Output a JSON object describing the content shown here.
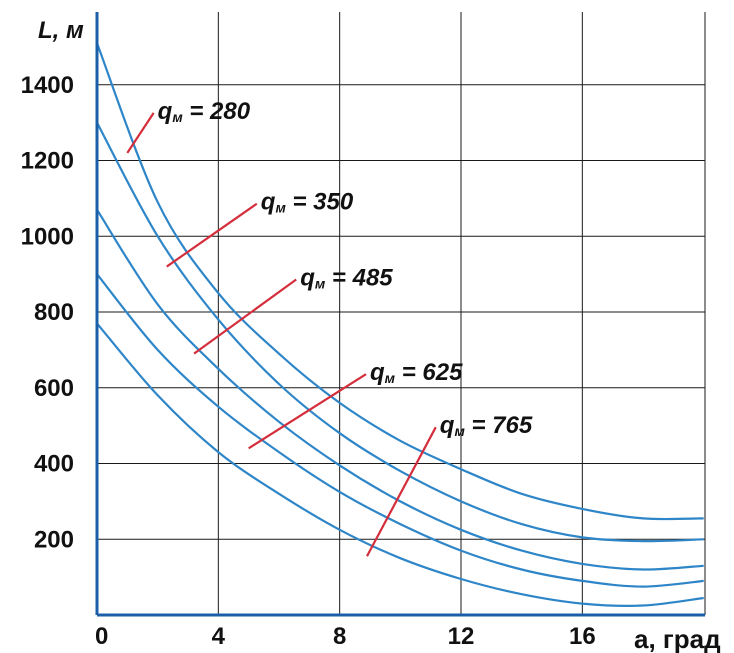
{
  "chart_data": {
    "type": "line",
    "title": "",
    "xlabel": "a, град",
    "ylabel": "L, м",
    "xlim": [
      0,
      20
    ],
    "ylim": [
      0,
      1500
    ],
    "x_ticks": [
      0,
      4,
      8,
      12,
      16
    ],
    "x_tick_labels": [
      "0",
      "4",
      "8",
      "12",
      "16"
    ],
    "y_ticks": [
      200,
      400,
      600,
      800,
      1000,
      1200,
      1400
    ],
    "y_tick_labels": [
      "200",
      "400",
      "600",
      "800",
      "1000",
      "1200",
      "1400"
    ],
    "grid": true,
    "colors": {
      "series": "#2E86C8",
      "pointer": "#D42E3C",
      "grid": "#1a1a1a"
    },
    "series": [
      {
        "name": "q = 280",
        "x": [
          0,
          2,
          4,
          6,
          8,
          10,
          12,
          14,
          16,
          18,
          20
        ],
        "values": [
          1510,
          1090,
          850,
          690,
          560,
          460,
          385,
          320,
          280,
          255,
          255
        ]
      },
      {
        "name": "q = 350",
        "x": [
          0,
          2,
          4,
          6,
          8,
          10,
          12,
          14,
          16,
          18,
          20
        ],
        "values": [
          1300,
          1000,
          780,
          610,
          480,
          380,
          300,
          240,
          205,
          195,
          200
        ]
      },
      {
        "name": "q = 485",
        "x": [
          0,
          2,
          4,
          6,
          8,
          10,
          12,
          14,
          16,
          18,
          20
        ],
        "values": [
          1070,
          820,
          650,
          510,
          395,
          300,
          225,
          170,
          135,
          120,
          130
        ]
      },
      {
        "name": "q = 625",
        "x": [
          0,
          2,
          4,
          6,
          8,
          10,
          12,
          14,
          16,
          18,
          20
        ],
        "values": [
          900,
          700,
          550,
          430,
          325,
          240,
          170,
          120,
          90,
          75,
          90
        ]
      },
      {
        "name": "q = 765",
        "x": [
          0,
          2,
          4,
          6,
          8,
          10,
          12,
          14,
          16,
          18,
          20
        ],
        "values": [
          770,
          580,
          430,
          320,
          225,
          150,
          95,
          55,
          30,
          25,
          45
        ]
      }
    ],
    "annotations": [
      {
        "label_main": "q",
        "label_sub": "м",
        "label_rest": " = 280",
        "at": {
          "x": 1,
          "y": 1220
        },
        "text_at": {
          "x": 2,
          "y": 1310
        }
      },
      {
        "label_main": "q",
        "label_sub": "м",
        "label_rest": " = 350",
        "at": {
          "x": 2.3,
          "y": 920
        },
        "text_at": {
          "x": 5.4,
          "y": 1070
        }
      },
      {
        "label_main": "q",
        "label_sub": "м",
        "label_rest": " = 485",
        "at": {
          "x": 3.2,
          "y": 690
        },
        "text_at": {
          "x": 6.7,
          "y": 870
        }
      },
      {
        "label_main": "q",
        "label_sub": "м",
        "label_rest": " = 625",
        "at": {
          "x": 5,
          "y": 440
        },
        "text_at": {
          "x": 9,
          "y": 620
        }
      },
      {
        "label_main": "q",
        "label_sub": "м",
        "label_rest": " = 765",
        "at": {
          "x": 8.9,
          "y": 155
        },
        "text_at": {
          "x": 11.3,
          "y": 480
        }
      }
    ]
  }
}
